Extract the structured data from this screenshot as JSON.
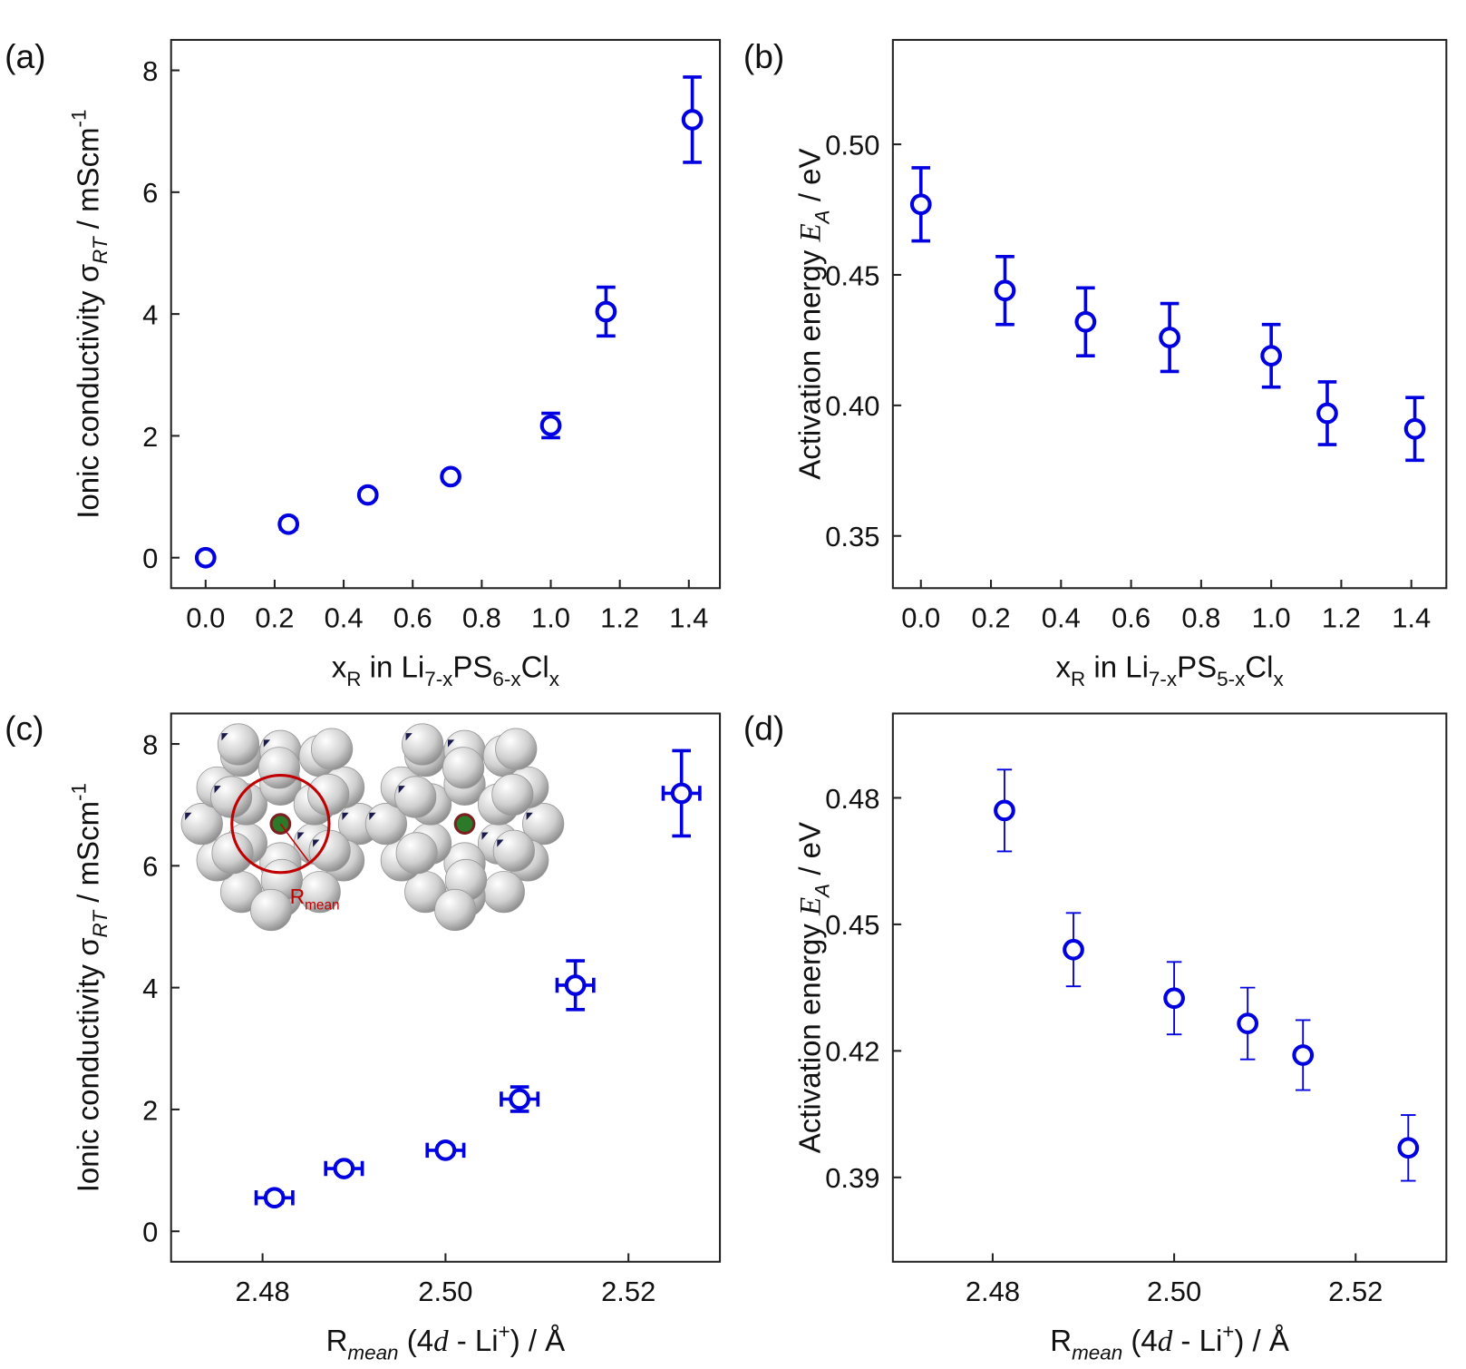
{
  "chart_data": [
    {
      "type": "scatter",
      "panel_label": "(a)",
      "color": "#0000e0",
      "x": [
        0,
        0.24,
        0.47,
        0.71,
        1.0,
        1.16,
        1.41
      ],
      "values": [
        0,
        0.55,
        1.03,
        1.33,
        2.17,
        4.04,
        7.19
      ],
      "y_errors": [
        0.02,
        0.08,
        0.07,
        0.07,
        0.2,
        0.4,
        0.7
      ],
      "xlim": [
        -0.1,
        1.49
      ],
      "ylim": [
        -0.5,
        8.5
      ],
      "xticks": [
        {
          "value": 0,
          "label": "0.0"
        },
        0.2,
        0.4,
        0.6,
        0.8,
        {
          "value": 1,
          "label": "1.0"
        },
        1.2,
        1.4
      ],
      "yticks": [
        0,
        2,
        4,
        6,
        8
      ],
      "x_label": [
        {
          "text": "x"
        },
        {
          "text": "R",
          "style": "sub"
        },
        {
          "text": " in Li"
        },
        {
          "text": "7-x",
          "style": "sub"
        },
        {
          "text": "PS"
        },
        {
          "text": "6-x",
          "style": "sub"
        },
        {
          "text": "Cl"
        },
        {
          "text": "x",
          "style": "sub"
        }
      ],
      "y_label": [
        {
          "text": "Ionic conductivity σ"
        },
        {
          "text": "RT",
          "style": "sub-it"
        },
        {
          "text": " / mScm"
        },
        {
          "text": "-1",
          "style": "sup"
        }
      ]
    },
    {
      "type": "scatter",
      "panel_label": "(b)",
      "color": "#0000e0",
      "x": [
        0,
        0.24,
        0.47,
        0.71,
        1.0,
        1.16,
        1.41
      ],
      "values": [
        0.477,
        0.444,
        0.432,
        0.426,
        0.419,
        0.397,
        0.391
      ],
      "y_errors": [
        0.014,
        0.013,
        0.013,
        0.013,
        0.012,
        0.012,
        0.012
      ],
      "xlim": [
        -0.08,
        1.5
      ],
      "ylim": [
        0.33,
        0.54
      ],
      "xticks": [
        {
          "value": 0,
          "label": "0.0"
        },
        0.2,
        0.4,
        0.6,
        0.8,
        {
          "value": 1,
          "label": "1.0"
        },
        1.2,
        1.4
      ],
      "yticks": [
        0.35,
        {
          "value": 0.4,
          "label": "0.40"
        },
        0.45,
        {
          "value": 0.5,
          "label": "0.50"
        }
      ],
      "x_label": [
        {
          "text": "x"
        },
        {
          "text": "R",
          "style": "sub"
        },
        {
          "text": " in Li"
        },
        {
          "text": "7-x",
          "style": "sub"
        },
        {
          "text": "PS"
        },
        {
          "text": "5-x",
          "style": "sub"
        },
        {
          "text": "Cl"
        },
        {
          "text": "x",
          "style": "sub"
        }
      ],
      "y_label": [
        {
          "text": "Activation energy "
        },
        {
          "text": "E",
          "style": "it"
        },
        {
          "text": "A",
          "style": "sub-it"
        },
        {
          "text": " / eV"
        }
      ]
    },
    {
      "type": "scatter",
      "panel_label": "(c)",
      "color": "#0000e0",
      "x": [
        2.4813,
        2.4889,
        2.5,
        2.5081,
        2.5142,
        2.5258
      ],
      "x_errors": [
        0.002,
        0.002,
        0.002,
        0.002,
        0.002,
        0.002
      ],
      "values": [
        0.55,
        1.03,
        1.33,
        2.17,
        4.04,
        7.19
      ],
      "y_errors": [
        0.08,
        0.07,
        0.07,
        0.2,
        0.4,
        0.7
      ],
      "xlim": [
        2.47,
        2.53
      ],
      "ylim": [
        -0.5,
        8.5
      ],
      "xticks": [
        2.48,
        {
          "value": 2.5,
          "label": "2.50"
        },
        2.52
      ],
      "yticks": [
        0,
        2,
        4,
        6,
        8
      ],
      "x_label": [
        {
          "text": "R"
        },
        {
          "text": "mean",
          "style": "sub-it"
        },
        {
          "text": " (4"
        },
        {
          "text": "d",
          "style": "it"
        },
        {
          "text": " - Li"
        },
        {
          "text": "+",
          "style": "sup"
        },
        {
          "text": ") / Å"
        }
      ],
      "y_label": [
        {
          "text": "Ionic conductivity σ"
        },
        {
          "text": "RT",
          "style": "sub-it"
        },
        {
          "text": " / mScm"
        },
        {
          "text": "-1",
          "style": "sup"
        }
      ],
      "inset_label": [
        {
          "text": "R"
        },
        {
          "text": "mean",
          "style": "sub"
        }
      ]
    },
    {
      "type": "scatter",
      "panel_label": "(d)",
      "color": "#0000e0",
      "x": [
        2.4813,
        2.4889,
        2.5,
        2.5081,
        2.5142,
        2.5258
      ],
      "values": [
        0.477,
        0.444,
        0.4325,
        0.4265,
        0.419,
        0.397
      ],
      "y_errors": [
        0.0097,
        0.0087,
        0.0086,
        0.0085,
        0.0083,
        0.0078
      ],
      "xlim": [
        2.469,
        2.53
      ],
      "ylim": [
        0.37,
        0.5
      ],
      "xticks": [
        2.48,
        {
          "value": 2.5,
          "label": "2.50"
        },
        2.52
      ],
      "yticks": [
        0.39,
        0.42,
        0.45,
        0.48
      ],
      "x_label": [
        {
          "text": "R"
        },
        {
          "text": "mean",
          "style": "sub-it"
        },
        {
          "text": " (4"
        },
        {
          "text": "d",
          "style": "it"
        },
        {
          "text": " - Li"
        },
        {
          "text": "+",
          "style": "sup"
        },
        {
          "text": ") / Å"
        }
      ],
      "y_label": [
        {
          "text": "Activation energy "
        },
        {
          "text": "E",
          "style": "it"
        },
        {
          "text": "A",
          "style": "sub-it"
        },
        {
          "text": " / eV"
        }
      ]
    }
  ]
}
